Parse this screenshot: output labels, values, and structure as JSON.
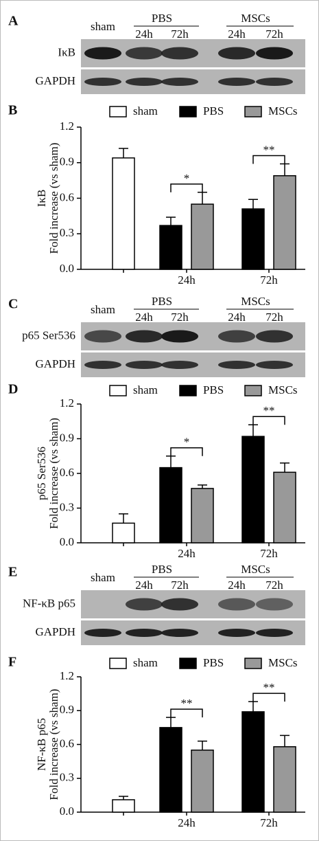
{
  "blots": [
    {
      "label": "A",
      "sham": "sham",
      "groups": [
        {
          "name": "PBS",
          "times": [
            "24h",
            "72h"
          ]
        },
        {
          "name": "MSCs",
          "times": [
            "24h",
            "72h"
          ]
        }
      ],
      "rows": [
        "IκB",
        "GAPDH"
      ]
    },
    {
      "label": "C",
      "sham": "sham",
      "groups": [
        {
          "name": "PBS",
          "times": [
            "24h",
            "72h"
          ]
        },
        {
          "name": "MSCs",
          "times": [
            "24h",
            "72h"
          ]
        }
      ],
      "rows": [
        "p65 Ser536",
        "GAPDH"
      ]
    },
    {
      "label": "E",
      "sham": "sham",
      "groups": [
        {
          "name": "PBS",
          "times": [
            "24h",
            "72h"
          ]
        },
        {
          "name": "MSCs",
          "times": [
            "24h",
            "72h"
          ]
        }
      ],
      "rows": [
        "NF-κB p65",
        "GAPDH"
      ]
    }
  ],
  "chart_data": [
    {
      "type": "bar",
      "label": "B",
      "ylabel": [
        "IκB",
        "Fold increase (vs sham)"
      ],
      "categories": [
        null,
        "24h",
        "72h"
      ],
      "series": [
        {
          "name": "sham",
          "color": "#ffffff",
          "values": [
            0.94,
            null,
            null
          ],
          "errors": [
            0.08,
            null,
            null
          ]
        },
        {
          "name": "PBS",
          "color": "#000000",
          "values": [
            null,
            0.37,
            0.51
          ],
          "errors": [
            null,
            0.07,
            0.08
          ]
        },
        {
          "name": "MSCs",
          "color": "#999999",
          "values": [
            null,
            0.55,
            0.79
          ],
          "errors": [
            null,
            0.1,
            0.1
          ]
        }
      ],
      "annotations": [
        {
          "text": "*",
          "category": 1
        },
        {
          "text": "**",
          "category": 2
        }
      ],
      "ylim": [
        0,
        1.2
      ],
      "yticks": [
        {
          "value": 0,
          "label": "0.0"
        },
        0.3,
        0.6,
        0.9,
        1.2
      ],
      "legend": "top"
    },
    {
      "type": "bar",
      "label": "D",
      "ylabel": [
        "p65 Ser536",
        "Fold increase (vs sham)"
      ],
      "categories": [
        null,
        "24h",
        "72h"
      ],
      "series": [
        {
          "name": "sham",
          "color": "#ffffff",
          "values": [
            0.17,
            null,
            null
          ],
          "errors": [
            0.08,
            null,
            null
          ]
        },
        {
          "name": "PBS",
          "color": "#000000",
          "values": [
            null,
            0.65,
            0.92
          ],
          "errors": [
            null,
            0.1,
            0.1
          ]
        },
        {
          "name": "MSCs",
          "color": "#999999",
          "values": [
            null,
            0.47,
            0.61
          ],
          "errors": [
            null,
            0.03,
            0.08
          ]
        }
      ],
      "annotations": [
        {
          "text": "*",
          "category": 1
        },
        {
          "text": "**",
          "category": 2
        }
      ],
      "ylim": [
        0,
        1.2
      ],
      "yticks": [
        {
          "value": 0,
          "label": "0.0"
        },
        0.3,
        0.6,
        0.9,
        1.2
      ],
      "legend": "top"
    },
    {
      "type": "bar",
      "label": "F",
      "ylabel": [
        "NF-κB p65",
        "Fold increase (vs sham)"
      ],
      "categories": [
        null,
        "24h",
        "72h"
      ],
      "series": [
        {
          "name": "sham",
          "color": "#ffffff",
          "values": [
            0.11,
            null,
            null
          ],
          "errors": [
            0.03,
            null,
            null
          ]
        },
        {
          "name": "PBS",
          "color": "#000000",
          "values": [
            null,
            0.75,
            0.89
          ],
          "errors": [
            null,
            0.09,
            0.09
          ]
        },
        {
          "name": "MSCs",
          "color": "#999999",
          "values": [
            null,
            0.55,
            0.58
          ],
          "errors": [
            null,
            0.08,
            0.1
          ]
        }
      ],
      "annotations": [
        {
          "text": "**",
          "category": 1
        },
        {
          "text": "**",
          "category": 2
        }
      ],
      "ylim": [
        0,
        1.2
      ],
      "yticks": [
        {
          "value": 0,
          "label": "0.0"
        },
        0.3,
        0.6,
        0.9,
        1.2
      ],
      "legend": "top"
    }
  ]
}
